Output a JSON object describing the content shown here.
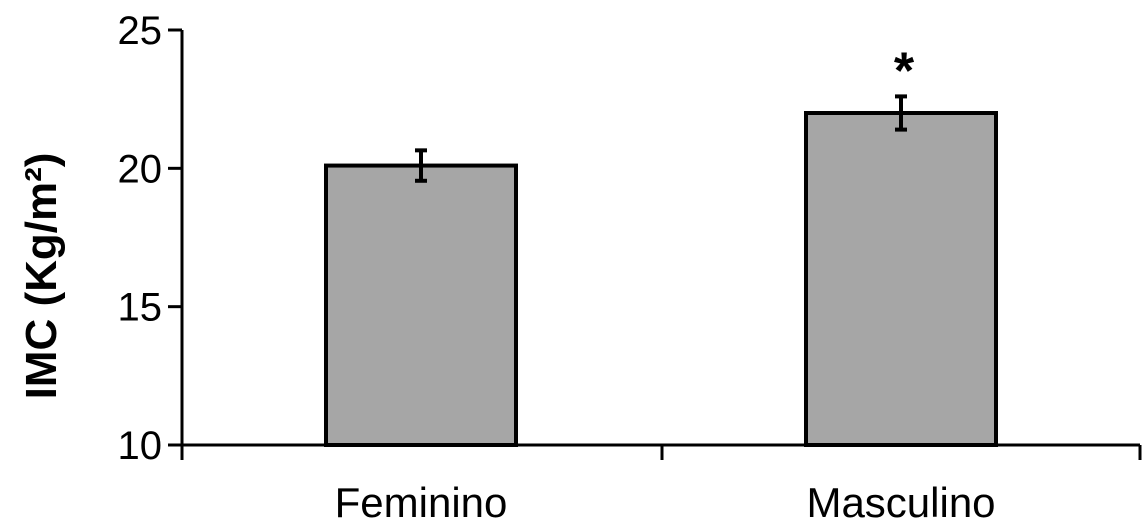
{
  "chart_data": {
    "type": "bar",
    "categories": [
      "Feminino",
      "Masculino"
    ],
    "values": [
      20.1,
      22.0
    ],
    "error": [
      0.55,
      0.6
    ],
    "significance": [
      "",
      "*"
    ],
    "ylabel": "IMC (Kg/m²)",
    "xlabel": "",
    "ylim": [
      10,
      25
    ],
    "yticks": [
      10,
      15,
      20,
      25
    ],
    "grid": false,
    "legend": "none",
    "bar_color": "#a6a6a6",
    "bar_edge_color": "#000000"
  }
}
